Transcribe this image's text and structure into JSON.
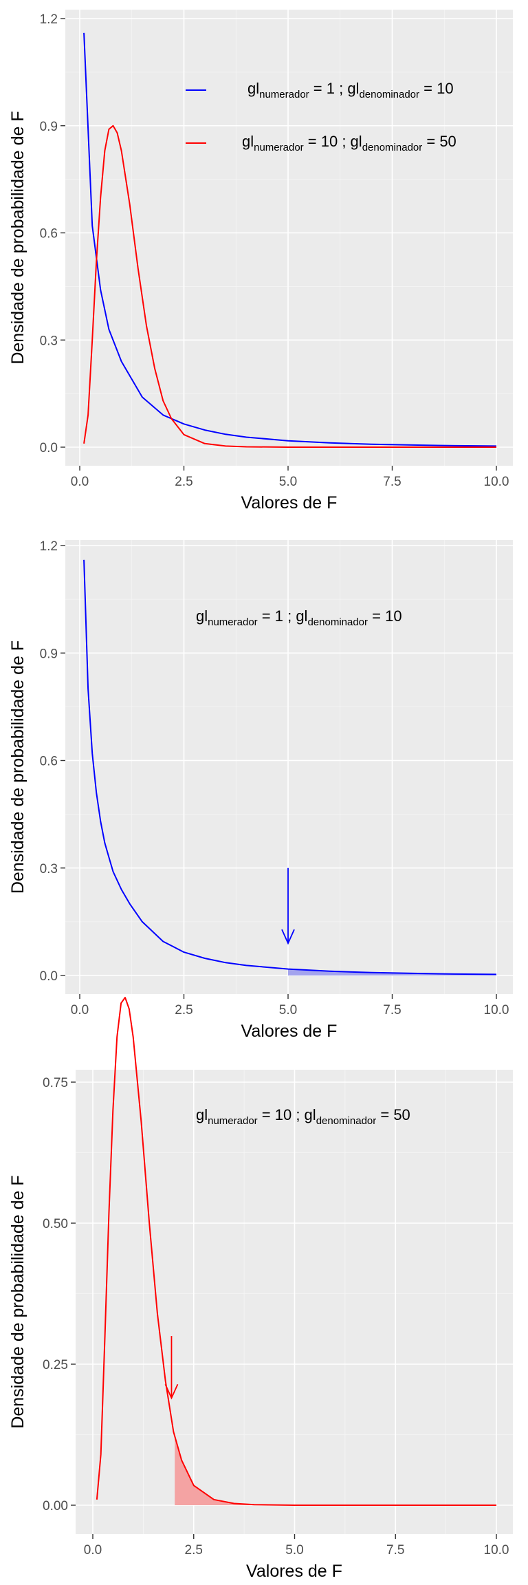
{
  "chart_data": [
    {
      "type": "line",
      "xlabel": "Valores de F",
      "ylabel": "Densidade de probabilidade de F",
      "xlim": [
        0,
        10
      ],
      "ylim": [
        0,
        1.2
      ],
      "xticks": [
        "0.0",
        "2.5",
        "5.0",
        "7.5",
        "10.0"
      ],
      "yticks": [
        "0.0",
        "0.3",
        "0.6",
        "0.9",
        "1.2"
      ],
      "grid": true,
      "legend": "top-right",
      "series": [
        {
          "name_parts": [
            "gl",
            "numerador",
            " = 1 ; gl",
            "denominador",
            " = 10"
          ],
          "color": "#0000ff",
          "x": [
            0.1,
            0.3,
            0.5,
            0.7,
            1.0,
            1.5,
            2.0,
            2.5,
            3.0,
            3.5,
            4.0,
            5.0,
            6.0,
            7.0,
            8.0,
            9.0,
            10.0
          ],
          "y": [
            1.16,
            0.62,
            0.44,
            0.33,
            0.24,
            0.14,
            0.09,
            0.065,
            0.048,
            0.036,
            0.028,
            0.018,
            0.012,
            0.008,
            0.006,
            0.004,
            0.003
          ]
        },
        {
          "name_parts": [
            "gl",
            "numerador",
            " = 10 ; gl",
            "denominador",
            " = 50"
          ],
          "color": "#ff0000",
          "x": [
            0.1,
            0.2,
            0.3,
            0.4,
            0.5,
            0.6,
            0.7,
            0.8,
            0.9,
            1.0,
            1.2,
            1.4,
            1.6,
            1.8,
            2.0,
            2.2,
            2.5,
            3.0,
            3.5,
            4.0,
            5.0,
            7.5,
            10.0
          ],
          "y": [
            0.01,
            0.09,
            0.3,
            0.52,
            0.7,
            0.83,
            0.89,
            0.9,
            0.88,
            0.83,
            0.68,
            0.5,
            0.34,
            0.22,
            0.13,
            0.08,
            0.035,
            0.01,
            0.003,
            0.001,
            0.0,
            0.0,
            0.0
          ]
        }
      ]
    },
    {
      "type": "line",
      "xlabel": "Valores de F",
      "ylabel": "Densidade de probabilidade de F",
      "xlim": [
        0,
        10
      ],
      "ylim": [
        0,
        1.2
      ],
      "xticks": [
        "0.0",
        "2.5",
        "5.0",
        "7.5",
        "10.0"
      ],
      "yticks": [
        "0.0",
        "0.3",
        "0.6",
        "0.9",
        "1.2"
      ],
      "grid": true,
      "label_parts": [
        "gl",
        "numerador",
        " = 1 ; gl",
        "denominador",
        " = 10"
      ],
      "shaded_from_x": 5.0,
      "arrow": {
        "x": 5.0,
        "y_from": 0.3,
        "y_to": 0.09
      },
      "series": [
        {
          "color": "#0000ff",
          "shade": "#a3a3ee",
          "x": [
            0.1,
            0.2,
            0.3,
            0.4,
            0.5,
            0.6,
            0.7,
            0.8,
            1.0,
            1.2,
            1.5,
            2.0,
            2.5,
            3.0,
            3.5,
            4.0,
            5.0,
            6.0,
            7.0,
            8.0,
            9.0,
            10.0
          ],
          "y": [
            1.16,
            0.8,
            0.62,
            0.51,
            0.43,
            0.37,
            0.33,
            0.29,
            0.24,
            0.2,
            0.15,
            0.095,
            0.065,
            0.048,
            0.036,
            0.028,
            0.018,
            0.012,
            0.008,
            0.006,
            0.004,
            0.003
          ]
        }
      ]
    },
    {
      "type": "line",
      "xlabel": "Valores de F",
      "ylabel": "Densidade de probabilidade de F",
      "xlim": [
        0,
        10
      ],
      "ylim": [
        0,
        0.9
      ],
      "xticks": [
        "0.0",
        "2.5",
        "5.0",
        "7.5",
        "10.0"
      ],
      "yticks": [
        "0.00",
        "0.25",
        "0.50",
        "0.75"
      ],
      "grid": true,
      "label_parts": [
        "gl",
        "numerador",
        " = 10 ; gl",
        "denominador",
        " = 50"
      ],
      "shaded_from_x": 2.03,
      "arrow": {
        "x": 1.95,
        "y_from": 0.3,
        "y_to": 0.19
      },
      "series": [
        {
          "color": "#ff0000",
          "shade": "#f4a3a3",
          "x": [
            0.1,
            0.2,
            0.3,
            0.4,
            0.5,
            0.6,
            0.7,
            0.8,
            0.9,
            1.0,
            1.2,
            1.4,
            1.6,
            1.8,
            2.0,
            2.2,
            2.5,
            3.0,
            3.5,
            4.0,
            5.0,
            7.5,
            10.0
          ],
          "y": [
            0.01,
            0.09,
            0.3,
            0.52,
            0.7,
            0.83,
            0.89,
            0.9,
            0.88,
            0.83,
            0.68,
            0.5,
            0.34,
            0.22,
            0.13,
            0.08,
            0.035,
            0.01,
            0.003,
            0.001,
            0.0,
            0.0,
            0.0
          ]
        }
      ]
    }
  ]
}
